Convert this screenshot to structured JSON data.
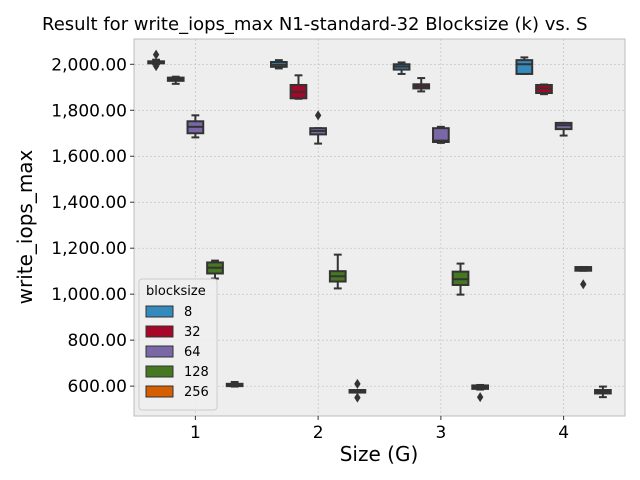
{
  "chart_data": {
    "type": "box",
    "title": "Result for write_iops_max N1-standard-32 Blocksize (k) vs. S",
    "xlabel": "Size (G)",
    "ylabel": "write_iops_max",
    "categories": [
      "1",
      "2",
      "3",
      "4"
    ],
    "ylim": [
      470,
      2110
    ],
    "yticks": [
      600,
      800,
      1000,
      1200,
      1400,
      1600,
      1800,
      2000
    ],
    "ytick_labels": [
      "600.00",
      "800.00",
      "1,000.00",
      "1,200.00",
      "1,400.00",
      "1,600.00",
      "1,800.00",
      "2,000.00"
    ],
    "grid": true,
    "legend": {
      "title": "blocksize",
      "placement": "lower-left",
      "entries": [
        "8",
        "32",
        "64",
        "128",
        "256"
      ]
    },
    "colors": [
      "#348ABD",
      "#A60628",
      "#7A68A6",
      "#467821",
      "#D55E00"
    ],
    "series": [
      {
        "name": "8",
        "boxes": [
          {
            "category": "1",
            "whisker_low": 2000,
            "q1": 2004,
            "median": 2008,
            "q3": 2013,
            "whisker_high": 2020,
            "outliers": [
              2042,
              1992
            ]
          },
          {
            "category": "2",
            "whisker_low": 1982,
            "q1": 1989,
            "median": 1998,
            "q3": 2010,
            "whisker_high": 2018,
            "outliers": []
          },
          {
            "category": "3",
            "whisker_low": 1958,
            "q1": 1977,
            "median": 1990,
            "q3": 2000,
            "whisker_high": 2008,
            "outliers": []
          },
          {
            "category": "4",
            "whisker_low": 1958,
            "q1": 1958,
            "median": 2000,
            "q3": 2018,
            "whisker_high": 2030,
            "outliers": []
          }
        ]
      },
      {
        "name": "32",
        "boxes": [
          {
            "category": "1",
            "whisker_low": 1915,
            "q1": 1928,
            "median": 1935,
            "q3": 1942,
            "whisker_high": 1946,
            "outliers": []
          },
          {
            "category": "2",
            "whisker_low": 1850,
            "q1": 1852,
            "median": 1880,
            "q3": 1910,
            "whisker_high": 1952,
            "outliers": []
          },
          {
            "category": "3",
            "whisker_low": 1882,
            "q1": 1895,
            "median": 1905,
            "q3": 1913,
            "whisker_high": 1940,
            "outliers": []
          },
          {
            "category": "4",
            "whisker_low": 1870,
            "q1": 1875,
            "median": 1895,
            "q3": 1910,
            "whisker_high": 1912,
            "outliers": []
          }
        ]
      },
      {
        "name": "64",
        "boxes": [
          {
            "category": "1",
            "whisker_low": 1682,
            "q1": 1700,
            "median": 1728,
            "q3": 1752,
            "whisker_high": 1778,
            "outliers": []
          },
          {
            "category": "2",
            "whisker_low": 1655,
            "q1": 1695,
            "median": 1710,
            "q3": 1722,
            "whisker_high": 1722,
            "outliers": [
              1778
            ]
          },
          {
            "category": "3",
            "whisker_low": 1658,
            "q1": 1662,
            "median": 1668,
            "q3": 1722,
            "whisker_high": 1728,
            "outliers": []
          },
          {
            "category": "4",
            "whisker_low": 1690,
            "q1": 1718,
            "median": 1735,
            "q3": 1745,
            "whisker_high": 1745,
            "outliers": []
          }
        ]
      },
      {
        "name": "128",
        "boxes": [
          {
            "category": "1",
            "whisker_low": 1068,
            "q1": 1090,
            "median": 1115,
            "q3": 1138,
            "whisker_high": 1146,
            "outliers": []
          },
          {
            "category": "2",
            "whisker_low": 1025,
            "q1": 1055,
            "median": 1078,
            "q3": 1100,
            "whisker_high": 1172,
            "outliers": []
          },
          {
            "category": "3",
            "whisker_low": 998,
            "q1": 1040,
            "median": 1065,
            "q3": 1098,
            "whisker_high": 1133,
            "outliers": []
          },
          {
            "category": "4",
            "whisker_low": 1102,
            "q1": 1102,
            "median": 1110,
            "q3": 1118,
            "whisker_high": 1118,
            "outliers": [
              1043
            ]
          }
        ]
      },
      {
        "name": "256",
        "boxes": [
          {
            "category": "1",
            "whisker_low": 598,
            "q1": 600,
            "median": 605,
            "q3": 610,
            "whisker_high": 618,
            "outliers": []
          },
          {
            "category": "2",
            "whisker_low": 572,
            "q1": 572,
            "median": 578,
            "q3": 583,
            "whisker_high": 583,
            "outliers": [
              610,
              550
            ]
          },
          {
            "category": "3",
            "whisker_low": 585,
            "q1": 588,
            "median": 596,
            "q3": 603,
            "whisker_high": 605,
            "outliers": [
              552
            ]
          },
          {
            "category": "4",
            "whisker_low": 552,
            "q1": 568,
            "median": 575,
            "q3": 583,
            "whisker_high": 598,
            "outliers": []
          }
        ]
      }
    ]
  }
}
